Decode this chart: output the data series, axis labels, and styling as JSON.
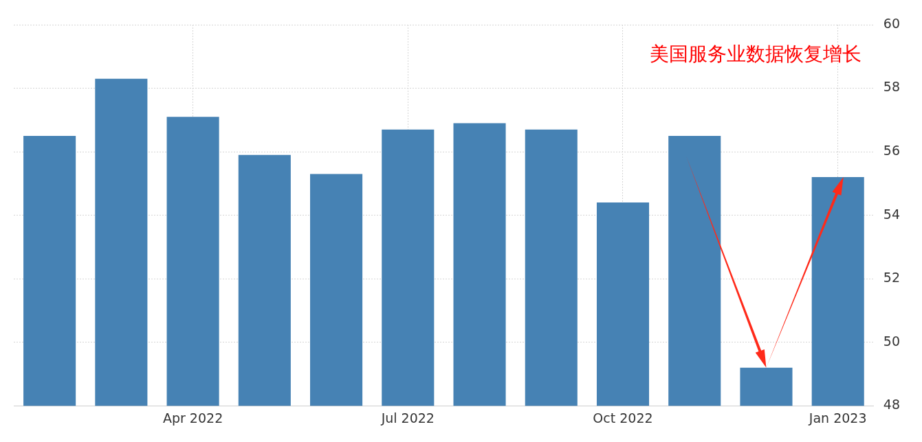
{
  "chart_data": {
    "type": "bar",
    "categories": [
      null,
      null,
      "Apr 2022",
      null,
      null,
      "Jul 2022",
      null,
      null,
      "Oct 2022",
      null,
      null,
      "Jan 2023"
    ],
    "values": [
      56.5,
      58.3,
      57.1,
      55.9,
      55.3,
      56.7,
      56.9,
      56.7,
      54.4,
      56.5,
      49.2,
      55.2
    ],
    "color": "#4682b4",
    "ylim": [
      48,
      60
    ],
    "yticks": [
      48,
      50,
      52,
      54,
      56,
      58,
      60
    ],
    "grid": true,
    "annotations": [
      "美国服务业数据恢复增长"
    ]
  }
}
